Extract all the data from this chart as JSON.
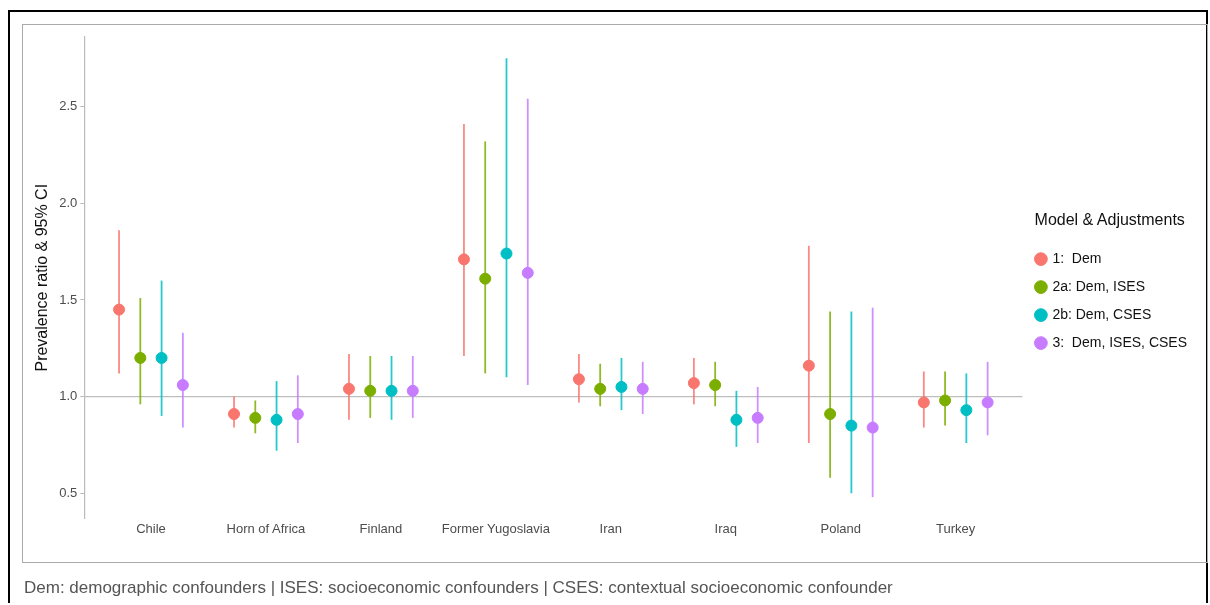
{
  "chart_data": {
    "type": "scatter",
    "ylabel": "Prevalence ratio & 95% CI",
    "legend_title": "Model & Adjustments",
    "legend": "right",
    "grid": false,
    "marker": "circle",
    "categories": [
      "Chile",
      "Horn of Africa",
      "Finland",
      "Former Yugoslavia",
      "Iran",
      "Iraq",
      "Poland",
      "Turkey"
    ],
    "ylim": [
      0.37,
      2.86
    ],
    "yticks": [
      {
        "value": 0.5,
        "label": "0.5"
      },
      {
        "value": 1,
        "label": "1.0"
      },
      {
        "value": 1.5,
        "label": "1.5"
      },
      {
        "value": 2,
        "label": "2.0"
      },
      {
        "value": 2.5,
        "label": "2.5"
      }
    ],
    "ref_lines": [
      {
        "axis": "y",
        "value": 1,
        "color": "#bebebe"
      }
    ],
    "annotations": [
      "Dem: demographic confounders | ISES: socioeconomic confounders | CSES: contextual socioeconomic confounder"
    ],
    "series": [
      {
        "name": "1:  Dem",
        "color": "#f8766d",
        "values": [
          1.45,
          0.91,
          1.04,
          1.71,
          1.09,
          1.07,
          1.16,
          0.97
        ],
        "errors": [
          [
            1.12,
            1.86
          ],
          [
            0.84,
            1.0
          ],
          [
            0.88,
            1.22
          ],
          [
            1.21,
            2.41
          ],
          [
            0.97,
            1.22
          ],
          [
            0.96,
            1.2
          ],
          [
            0.76,
            1.78
          ],
          [
            0.84,
            1.13
          ]
        ]
      },
      {
        "name": "2a: Dem, ISES",
        "color": "#7cae00",
        "values": [
          1.2,
          0.89,
          1.03,
          1.61,
          1.04,
          1.06,
          0.91,
          0.98
        ],
        "errors": [
          [
            0.96,
            1.51
          ],
          [
            0.81,
            0.98
          ],
          [
            0.89,
            1.21
          ],
          [
            1.12,
            2.32
          ],
          [
            0.95,
            1.17
          ],
          [
            0.95,
            1.18
          ],
          [
            0.58,
            1.44
          ],
          [
            0.85,
            1.13
          ]
        ]
      },
      {
        "name": "2b: Dem, CSES",
        "color": "#00bfc4",
        "values": [
          1.2,
          0.88,
          1.03,
          1.74,
          1.05,
          0.88,
          0.85,
          0.93
        ],
        "errors": [
          [
            0.9,
            1.6
          ],
          [
            0.72,
            1.08
          ],
          [
            0.88,
            1.21
          ],
          [
            1.1,
            2.75
          ],
          [
            0.93,
            1.2
          ],
          [
            0.74,
            1.03
          ],
          [
            0.5,
            1.44
          ],
          [
            0.76,
            1.12
          ]
        ]
      },
      {
        "name": "3:  Dem, ISES, CSES",
        "color": "#c77cff",
        "values": [
          1.06,
          0.91,
          1.03,
          1.64,
          1.04,
          0.89,
          0.84,
          0.97
        ],
        "errors": [
          [
            0.84,
            1.33
          ],
          [
            0.76,
            1.11
          ],
          [
            0.89,
            1.21
          ],
          [
            1.06,
            2.54
          ],
          [
            0.91,
            1.18
          ],
          [
            0.76,
            1.05
          ],
          [
            0.48,
            1.46
          ],
          [
            0.8,
            1.18
          ]
        ]
      }
    ]
  }
}
